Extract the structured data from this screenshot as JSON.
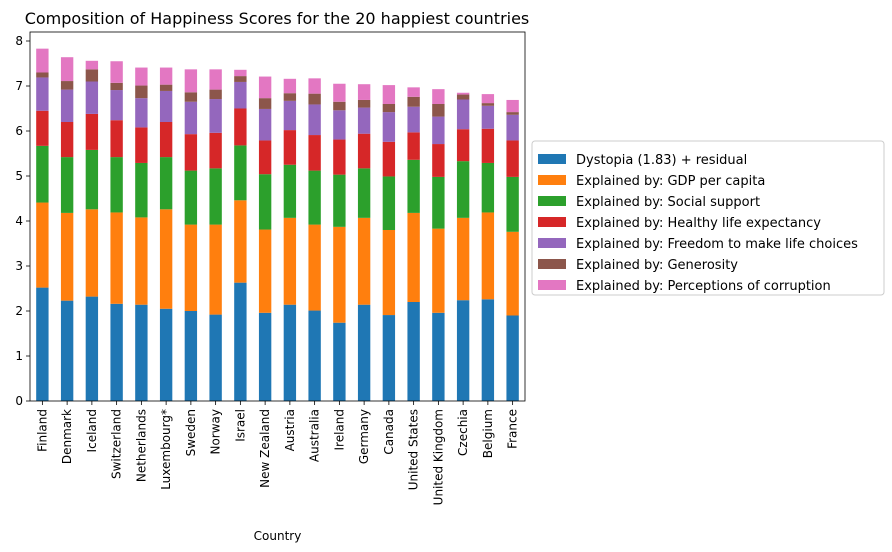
{
  "chart_data": {
    "type": "bar",
    "stacked": true,
    "title": "Composition of Happiness Scores for the 20 happiest countries",
    "xlabel": "Country",
    "ylabel": "",
    "ylim": [
      0,
      8.2
    ],
    "yticks": [
      0,
      1,
      2,
      3,
      4,
      5,
      6,
      7,
      8
    ],
    "grid": false,
    "legend_position": "center-right (outside)",
    "categories": [
      "Finland",
      "Denmark",
      "Iceland",
      "Switzerland",
      "Netherlands",
      "Luxembourg*",
      "Sweden",
      "Norway",
      "Israel",
      "New Zealand",
      "Austria",
      "Australia",
      "Ireland",
      "Germany",
      "Canada",
      "United States",
      "United Kingdom",
      "Czechia",
      "Belgium",
      "France"
    ],
    "series": [
      {
        "name": "Dystopia (1.83) + residual",
        "color": "#1f77b4",
        "values": [
          2.52,
          2.23,
          2.32,
          2.16,
          2.14,
          2.05,
          2.0,
          1.92,
          2.63,
          1.96,
          2.14,
          2.01,
          1.74,
          2.14,
          1.91,
          2.2,
          1.96,
          2.24,
          2.26,
          1.9
        ]
      },
      {
        "name": "Explained by: GDP per capita",
        "color": "#ff7f0e",
        "values": [
          1.89,
          1.95,
          1.94,
          2.03,
          1.94,
          2.21,
          1.92,
          2.0,
          1.83,
          1.85,
          1.93,
          1.91,
          2.13,
          1.93,
          1.89,
          1.98,
          1.87,
          1.83,
          1.93,
          1.86
        ]
      },
      {
        "name": "Explained by: Social support",
        "color": "#2ca02c",
        "values": [
          1.26,
          1.24,
          1.32,
          1.23,
          1.21,
          1.16,
          1.2,
          1.25,
          1.22,
          1.23,
          1.18,
          1.2,
          1.16,
          1.1,
          1.19,
          1.18,
          1.15,
          1.26,
          1.1,
          1.22
        ]
      },
      {
        "name": "Explained by: Healthy life expectancy",
        "color": "#d62728",
        "values": [
          0.78,
          0.78,
          0.8,
          0.82,
          0.79,
          0.78,
          0.81,
          0.79,
          0.82,
          0.75,
          0.77,
          0.79,
          0.78,
          0.77,
          0.77,
          0.61,
          0.73,
          0.71,
          0.76,
          0.81
        ]
      },
      {
        "name": "Explained by: Freedom to make life choices",
        "color": "#9467bd",
        "values": [
          0.74,
          0.72,
          0.72,
          0.67,
          0.65,
          0.69,
          0.72,
          0.75,
          0.59,
          0.7,
          0.65,
          0.68,
          0.65,
          0.58,
          0.66,
          0.57,
          0.61,
          0.66,
          0.51,
          0.57
        ]
      },
      {
        "name": "Explained by: Generosity",
        "color": "#8c564b",
        "values": [
          0.11,
          0.19,
          0.27,
          0.16,
          0.28,
          0.14,
          0.21,
          0.21,
          0.13,
          0.24,
          0.17,
          0.24,
          0.19,
          0.17,
          0.18,
          0.22,
          0.28,
          0.11,
          0.06,
          0.06
        ]
      },
      {
        "name": "Explained by: Perceptions of corruption",
        "color": "#e377c2",
        "values": [
          0.53,
          0.53,
          0.19,
          0.48,
          0.4,
          0.38,
          0.51,
          0.45,
          0.14,
          0.48,
          0.32,
          0.34,
          0.4,
          0.35,
          0.42,
          0.21,
          0.33,
          0.04,
          0.2,
          0.27
        ]
      }
    ]
  }
}
